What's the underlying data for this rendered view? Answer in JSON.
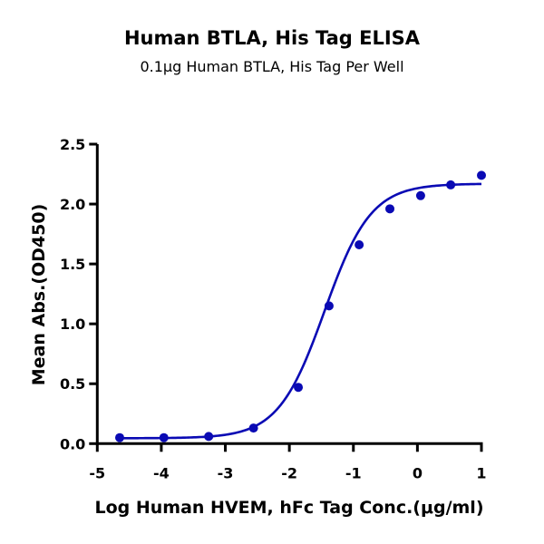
{
  "chart_data": {
    "type": "scatter",
    "title": "Human BTLA, His Tag ELISA",
    "subtitle": "0.1μg Human BTLA, His Tag Per Well",
    "xlabel": "Log Human HVEM, hFc Tag Conc.(μg/ml)",
    "ylabel": "Mean Abs.(OD450)",
    "xlim": [
      -5,
      1
    ],
    "ylim": [
      0,
      2.5
    ],
    "xticks": [
      "-5",
      "-4",
      "-3",
      "-2",
      "-1",
      "0",
      "1"
    ],
    "yticks": [
      "0.0",
      "0.5",
      "1.0",
      "1.5",
      "2.0",
      "2.5"
    ],
    "grid": false,
    "color": "#0a0ab4",
    "series": [
      {
        "x": [
          -4.65,
          -3.96,
          -3.26,
          -2.56,
          -1.86,
          -1.38,
          -0.91,
          -0.43,
          0.05,
          0.52,
          1.0
        ],
        "y": [
          0.05,
          0.05,
          0.06,
          0.13,
          0.47,
          1.15,
          1.66,
          1.96,
          2.07,
          2.16,
          2.24
        ]
      }
    ],
    "fit_curve": {
      "model": "4PL",
      "bottom": 0.045,
      "top": 2.17,
      "logEC50": -1.45,
      "hill": 1.2,
      "x_range": [
        -4.65,
        1.0
      ]
    }
  }
}
